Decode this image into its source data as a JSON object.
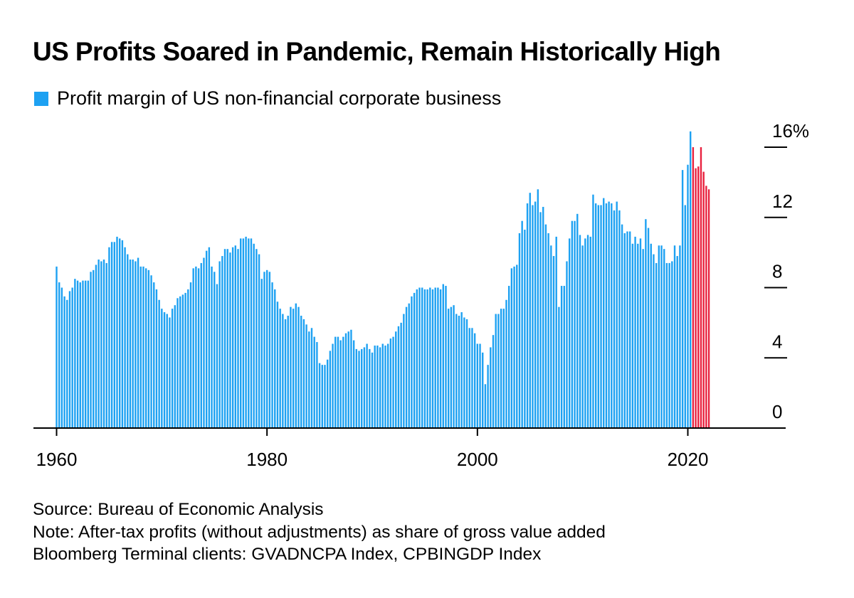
{
  "title": "US Profits Soared in Pandemic, Remain Historically High",
  "legend": {
    "label": "Profit margin of US non-financial corporate business",
    "color": "#1da1f2"
  },
  "colors": {
    "bar": "#1da1f2",
    "highlight": "#e8213e",
    "axis": "#000000"
  },
  "footer": {
    "source": "Source: Bureau of Economic Analysis",
    "note": "Note: After-tax profits (without adjustments) as share of gross value added",
    "terminal": "Bloomberg Terminal clients: GVADNCPA Index, CPBINGDP Index"
  },
  "chart_data": {
    "type": "bar",
    "frequency": "quarterly",
    "x_start": 1960.0,
    "x_step": 0.25,
    "highlight_from": 2020.5,
    "xlim": [
      1958.0,
      2029.0
    ],
    "ylim": [
      0,
      16
    ],
    "x_ticks": [
      1960,
      1980,
      2000,
      2020
    ],
    "x_tick_labels": [
      "1960",
      "1980",
      "2000",
      "2020"
    ],
    "y_ticks": [
      0,
      4,
      8,
      12,
      16
    ],
    "y_tick_labels": [
      "0",
      "4",
      "8",
      "12",
      "16%"
    ],
    "series": [
      {
        "name": "Profit margin of US non-financial corporate business",
        "values": [
          9.2,
          8.3,
          8.0,
          7.5,
          7.3,
          7.8,
          8.0,
          8.5,
          8.4,
          8.3,
          8.4,
          8.4,
          8.4,
          8.9,
          9.0,
          9.3,
          9.6,
          9.5,
          9.6,
          9.4,
          10.3,
          10.6,
          10.6,
          10.9,
          10.8,
          10.7,
          10.3,
          9.9,
          9.6,
          9.6,
          9.5,
          9.7,
          9.2,
          9.2,
          9.1,
          9.0,
          8.7,
          8.3,
          7.9,
          7.3,
          6.8,
          6.6,
          6.5,
          6.3,
          6.8,
          7.0,
          7.4,
          7.5,
          7.6,
          7.7,
          7.9,
          8.3,
          9.1,
          9.2,
          9.1,
          9.4,
          9.7,
          10.1,
          10.3,
          9.2,
          8.9,
          8.2,
          9.5,
          9.8,
          10.2,
          10.2,
          10.0,
          10.3,
          10.4,
          10.2,
          10.8,
          10.8,
          10.9,
          10.8,
          10.8,
          10.5,
          10.2,
          9.9,
          8.5,
          8.9,
          9.0,
          8.9,
          8.3,
          7.9,
          7.2,
          6.8,
          6.5,
          6.2,
          6.4,
          6.9,
          6.8,
          7.1,
          6.9,
          6.4,
          6.2,
          5.9,
          5.5,
          5.7,
          5.2,
          4.9,
          3.7,
          3.6,
          3.6,
          3.9,
          4.4,
          4.8,
          5.2,
          5.2,
          5.0,
          5.2,
          5.4,
          5.5,
          5.6,
          5.0,
          4.5,
          4.4,
          4.5,
          4.6,
          4.8,
          4.5,
          4.3,
          4.7,
          4.7,
          4.6,
          4.8,
          4.7,
          4.8,
          5.1,
          5.2,
          5.5,
          5.8,
          6.0,
          6.5,
          6.9,
          7.1,
          7.5,
          7.7,
          7.9,
          8.0,
          8.0,
          7.9,
          7.9,
          8.0,
          7.9,
          8.0,
          8.0,
          7.9,
          8.2,
          8.1,
          6.8,
          6.9,
          7.0,
          6.5,
          6.4,
          6.6,
          6.3,
          6.2,
          5.7,
          5.7,
          5.4,
          4.8,
          4.8,
          4.3,
          2.5,
          3.6,
          4.6,
          5.3,
          6.5,
          6.5,
          6.8,
          6.8,
          7.3,
          8.1,
          9.1,
          9.2,
          9.3,
          11.1,
          11.8,
          11.3,
          12.8,
          13.4,
          12.7,
          12.9,
          13.6,
          12.3,
          12.6,
          11.6,
          11.1,
          10.4,
          9.8,
          10.9,
          6.9,
          8.1,
          8.1,
          9.5,
          10.8,
          11.8,
          11.8,
          12.2,
          11.0,
          10.4,
          10.8,
          11.0,
          10.9,
          13.3,
          12.8,
          12.7,
          12.7,
          13.1,
          12.8,
          12.9,
          12.8,
          12.4,
          12.9,
          12.4,
          11.6,
          11.1,
          11.2,
          11.2,
          10.5,
          10.9,
          10.5,
          10.8,
          10.2,
          11.9,
          11.4,
          10.5,
          9.9,
          9.4,
          10.4,
          10.4,
          10.2,
          9.4,
          9.4,
          9.5,
          10.4,
          9.8,
          10.4,
          14.7,
          12.7,
          15.0,
          16.9,
          16.0,
          14.8,
          14.9,
          16.0,
          14.6,
          13.8,
          13.6
        ]
      }
    ]
  }
}
